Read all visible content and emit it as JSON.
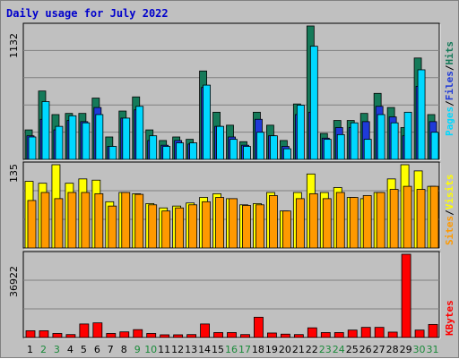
{
  "title": "Daily usage for July 2022",
  "colors": {
    "background": "#c0c0c0",
    "hits": "#157a59",
    "files": "#1f3ad8",
    "pages": "#00d8ff",
    "visits": "#ffff00",
    "sites": "#ff9900",
    "kbytes": "#ff0000",
    "weekend_day": "#1a8a3a",
    "weekday": "#000000"
  },
  "side_labels": {
    "top": [
      "Pages",
      "Files",
      "Hits"
    ],
    "middle": [
      "Sites",
      "Visits"
    ],
    "bottom": [
      "KBytes"
    ]
  },
  "chart_data": [
    {
      "type": "bar",
      "panel": "hits-files-pages",
      "categories": [
        "1",
        "2",
        "3",
        "4",
        "5",
        "6",
        "7",
        "8",
        "9",
        "10",
        "11",
        "12",
        "13",
        "14",
        "15",
        "16",
        "17",
        "18",
        "19",
        "20",
        "21",
        "22",
        "23",
        "24",
        "25",
        "26",
        "27",
        "28",
        "29",
        "30",
        "31"
      ],
      "y_max_label": "1132",
      "ylim": [
        0,
        1132
      ],
      "grid": true,
      "series": [
        {
          "name": "Hits",
          "values": [
            250,
            580,
            380,
            390,
            390,
            520,
            190,
            410,
            530,
            250,
            160,
            190,
            170,
            750,
            400,
            290,
            150,
            400,
            290,
            160,
            470,
            1132,
            220,
            330,
            330,
            390,
            560,
            440,
            270,
            860,
            380
          ]
        },
        {
          "name": "Files",
          "values": [
            200,
            340,
            250,
            330,
            320,
            440,
            110,
            350,
            420,
            160,
            120,
            160,
            130,
            610,
            280,
            190,
            120,
            340,
            200,
            110,
            380,
            400,
            180,
            270,
            270,
            320,
            450,
            360,
            200,
            620,
            320
          ]
        },
        {
          "name": "Pages",
          "values": [
            190,
            490,
            280,
            370,
            310,
            380,
            110,
            350,
            450,
            200,
            110,
            140,
            140,
            630,
            280,
            170,
            110,
            230,
            200,
            90,
            460,
            960,
            170,
            210,
            310,
            170,
            380,
            310,
            400,
            760,
            230
          ]
        }
      ]
    },
    {
      "type": "bar",
      "panel": "visits-sites",
      "categories": [
        "1",
        "2",
        "3",
        "4",
        "5",
        "6",
        "7",
        "8",
        "9",
        "10",
        "11",
        "12",
        "13",
        "14",
        "15",
        "16",
        "17",
        "18",
        "19",
        "20",
        "21",
        "22",
        "23",
        "24",
        "25",
        "26",
        "27",
        "28",
        "29",
        "30",
        "31"
      ],
      "y_max_label": "135",
      "ylim": [
        0,
        135
      ],
      "grid": true,
      "series": [
        {
          "name": "Visits",
          "values": [
            108,
            105,
            135,
            105,
            112,
            110,
            75,
            90,
            88,
            72,
            65,
            68,
            73,
            82,
            88,
            80,
            70,
            72,
            90,
            60,
            90,
            120,
            90,
            98,
            82,
            80,
            90,
            112,
            135,
            125,
            100
          ]
        },
        {
          "name": "Sites",
          "values": [
            77,
            90,
            80,
            90,
            90,
            88,
            68,
            90,
            87,
            70,
            60,
            65,
            70,
            75,
            82,
            80,
            69,
            70,
            85,
            60,
            80,
            88,
            80,
            90,
            82,
            85,
            90,
            95,
            100,
            95,
            100
          ]
        }
      ]
    },
    {
      "type": "bar",
      "panel": "kbytes",
      "categories": [
        "1",
        "2",
        "3",
        "4",
        "5",
        "6",
        "7",
        "8",
        "9",
        "10",
        "11",
        "12",
        "13",
        "14",
        "15",
        "16",
        "17",
        "18",
        "19",
        "20",
        "21",
        "22",
        "23",
        "24",
        "25",
        "26",
        "27",
        "28",
        "29",
        "30",
        "31"
      ],
      "y_max_label": "36922",
      "ylim": [
        0,
        36922
      ],
      "grid": true,
      "series": [
        {
          "name": "KBytes",
          "values": [
            3000,
            3000,
            1800,
            1300,
            6000,
            6500,
            1800,
            2500,
            3500,
            1800,
            1200,
            1200,
            1300,
            6000,
            2200,
            2200,
            1300,
            9000,
            2000,
            1500,
            1300,
            4300,
            2200,
            2200,
            3300,
            4500,
            4500,
            2400,
            36922,
            3300,
            5800
          ]
        }
      ]
    }
  ]
}
